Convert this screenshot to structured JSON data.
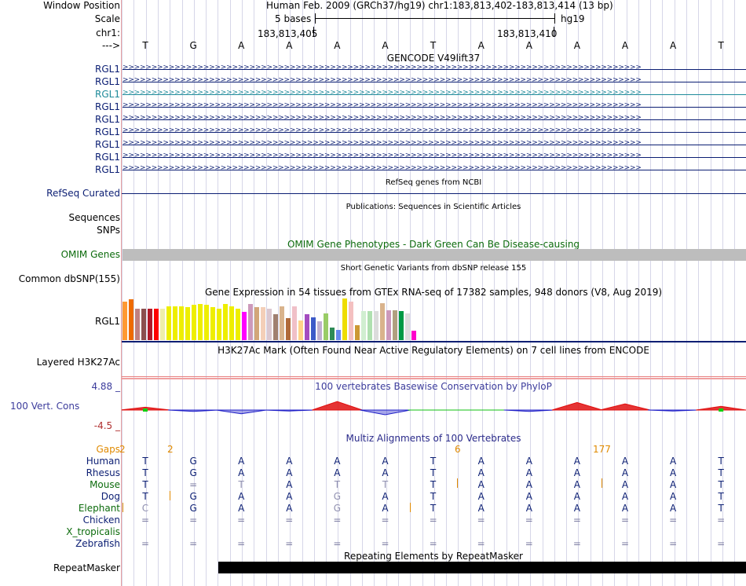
{
  "header": {
    "window_position_label": "Window Position",
    "scale_label": "Scale",
    "chr_label": "chr1:",
    "arrow_label": "--->",
    "title": "Human Feb. 2009 (GRCh37/hg19)   chr1:183,813,402-183,813,414 (13 bp)",
    "scale_text": "5 bases",
    "assembly": "hg19",
    "pos_left": "183,813,405",
    "pos_right": "183,813,410"
  },
  "bases": [
    "T",
    "G",
    "A",
    "A",
    "A",
    "A",
    "T",
    "A",
    "A",
    "A",
    "A",
    "A",
    "T"
  ],
  "gencode": {
    "title": "GENCODE V49lift37",
    "transcripts": [
      "RGL1",
      "RGL1",
      "RGL1",
      "RGL1",
      "RGL1",
      "RGL1",
      "RGL1",
      "RGL1",
      "RGL1"
    ]
  },
  "refseq": {
    "title": "RefSeq genes from NCBI",
    "label": "RefSeq Curated"
  },
  "publications": {
    "title": "Publications: Sequences in Scientific Articles",
    "label1": "Sequences",
    "label2": "SNPs"
  },
  "omim": {
    "title": "OMIM Gene Phenotypes - Dark Green Can Be Disease-causing",
    "label": "OMIM Genes"
  },
  "dbsnp": {
    "title": "Short Genetic Variants from dbSNP release 155",
    "label": "Common dbSNP(155)"
  },
  "gtex": {
    "title": "Gene Expression in 54 tissues from GTEx RNA-seq of 17382 samples, 948 donors (V8, Aug 2019)",
    "label": "RGL1",
    "bars": [
      {
        "h": 0.93,
        "c": "#ff9933"
      },
      {
        "h": 0.98,
        "c": "#ee6a00"
      },
      {
        "h": 0.75,
        "c": "#c08080"
      },
      {
        "h": 0.75,
        "c": "#8b4f4f"
      },
      {
        "h": 0.75,
        "c": "#b01a2a"
      },
      {
        "h": 0.75,
        "c": "#ff0000"
      },
      {
        "h": 0.75,
        "c": "#eeeeaa"
      },
      {
        "h": 0.82,
        "c": "#eeee00"
      },
      {
        "h": 0.82,
        "c": "#eeee00"
      },
      {
        "h": 0.82,
        "c": "#eeee00"
      },
      {
        "h": 0.8,
        "c": "#eeee00"
      },
      {
        "h": 0.85,
        "c": "#eeee00"
      },
      {
        "h": 0.87,
        "c": "#eeee00"
      },
      {
        "h": 0.85,
        "c": "#eeee00"
      },
      {
        "h": 0.8,
        "c": "#eeee00"
      },
      {
        "h": 0.75,
        "c": "#eeee00"
      },
      {
        "h": 0.87,
        "c": "#eeee00"
      },
      {
        "h": 0.82,
        "c": "#eeee00"
      },
      {
        "h": 0.75,
        "c": "#eeee00"
      },
      {
        "h": 0.68,
        "c": "#ff00ff"
      },
      {
        "h": 0.87,
        "c": "#cc99bb"
      },
      {
        "h": 0.8,
        "c": "#d2a679"
      },
      {
        "h": 0.8,
        "c": "#f4cfb8"
      },
      {
        "h": 0.75,
        "c": "#dcc8d0"
      },
      {
        "h": 0.62,
        "c": "#a08070"
      },
      {
        "h": 0.82,
        "c": "#d9b38c"
      },
      {
        "h": 0.52,
        "c": "#b06a3a"
      },
      {
        "h": 0.82,
        "c": "#f0c0c8"
      },
      {
        "h": 0.48,
        "c": "#ffd38a"
      },
      {
        "h": 0.62,
        "c": "#a44cc0"
      },
      {
        "h": 0.55,
        "c": "#3c5ac8"
      },
      {
        "h": 0.45,
        "c": "#c0b0d0"
      },
      {
        "h": 0.65,
        "c": "#99cc66"
      },
      {
        "h": 0.3,
        "c": "#2e8b57"
      },
      {
        "h": 0.25,
        "c": "#6688ee"
      },
      {
        "h": 1.0,
        "c": "#eedd00"
      },
      {
        "h": 0.92,
        "c": "#f4c0c0"
      },
      {
        "h": 0.35,
        "c": "#cc9933"
      },
      {
        "h": 0.7,
        "c": "#d0eed0"
      },
      {
        "h": 0.7,
        "c": "#b0e0b0"
      },
      {
        "h": 0.7,
        "c": "#dcdcdc"
      },
      {
        "h": 0.88,
        "c": "#d9b38c"
      },
      {
        "h": 0.72,
        "c": "#cc99bb"
      },
      {
        "h": 0.72,
        "c": "#b0a080"
      },
      {
        "h": 0.7,
        "c": "#009944"
      },
      {
        "h": 0.65,
        "c": "#dddddd"
      },
      {
        "h": 0.22,
        "c": "#ff00cc"
      }
    ]
  },
  "h3k27ac": {
    "title": "H3K27Ac Mark (Often Found Near Active Regulatory Elements) on 7 cell lines from ENCODE",
    "label": "Layered H3K27Ac"
  },
  "cons": {
    "title": "100 vertebrates Basewise Conservation by PhyloP",
    "label": "100 Vert. Cons",
    "max": "4.88 _",
    "min": "-4.5 _",
    "values": [
      0.6,
      -0.3,
      -0.8,
      -0.2,
      1.8,
      -1.0,
      0.0,
      0.0,
      -0.3,
      1.6,
      1.3,
      -0.2,
      0.8
    ]
  },
  "multiz": {
    "title": "Multiz Alignments of 100 Vertebrates",
    "gaps_label": "Gaps",
    "gaps": [
      "2",
      "2",
      "6",
      "177"
    ],
    "species": [
      {
        "name": "Human",
        "seq": [
          "T",
          "G",
          "A",
          "A",
          "A",
          "A",
          "T",
          "A",
          "A",
          "A",
          "A",
          "A",
          "T"
        ]
      },
      {
        "name": "Rhesus",
        "seq": [
          "T",
          "G",
          "A",
          "A",
          "A",
          "A",
          "T",
          "A",
          "A",
          "A",
          "A",
          "A",
          "T"
        ]
      },
      {
        "name": "Mouse",
        "seq": [
          "T",
          "=",
          "T",
          "A",
          "T",
          "T",
          "T",
          "A",
          "A",
          "A",
          "A",
          "A",
          "T"
        ]
      },
      {
        "name": "Dog",
        "seq": [
          "T",
          "G",
          "A",
          "A",
          "G",
          "A",
          "T",
          "A",
          "A",
          "A",
          "A",
          "A",
          "T"
        ]
      },
      {
        "name": "Elephant",
        "seq": [
          "C",
          "G",
          "A",
          "A",
          "G",
          "A",
          "T",
          "A",
          "A",
          "A",
          "A",
          "A",
          "T"
        ]
      },
      {
        "name": "Chicken",
        "seq": [
          "=",
          "=",
          "=",
          "=",
          "=",
          "=",
          "=",
          "=",
          "=",
          "=",
          "=",
          "=",
          "="
        ]
      },
      {
        "name": "X_tropicalis",
        "seq": [
          "",
          "",
          "",
          "",
          "",
          "",
          "",
          "",
          "",
          "",
          "",
          "",
          ""
        ]
      },
      {
        "name": "Zebrafish",
        "seq": [
          "=",
          "=",
          "=",
          "=",
          "=",
          "=",
          "=",
          "=",
          "=",
          "=",
          "=",
          "=",
          "="
        ]
      }
    ]
  },
  "repeatmasker": {
    "title": "Repeating Elements by RepeatMasker",
    "label": "RepeatMasker"
  }
}
